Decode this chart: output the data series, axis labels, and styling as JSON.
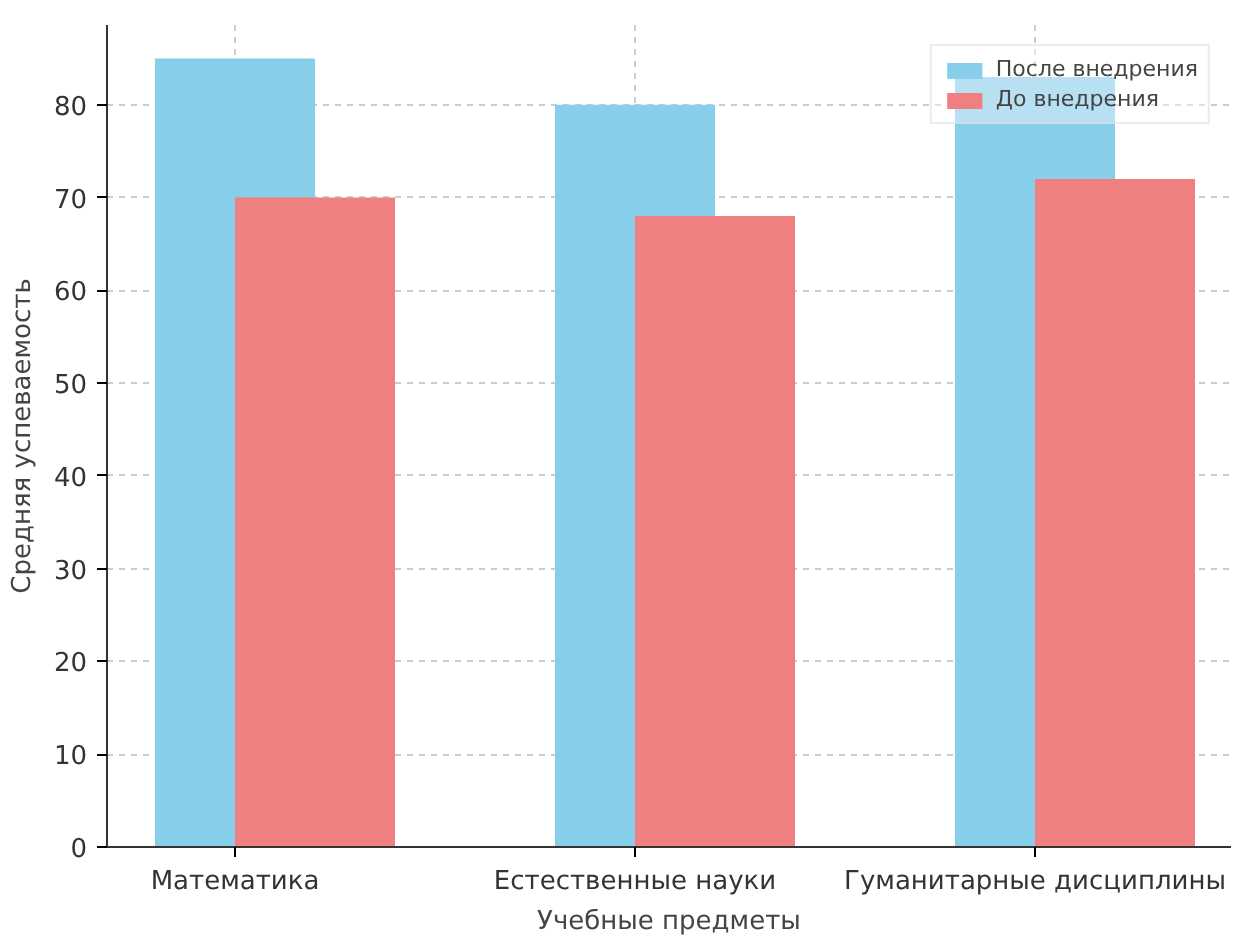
{
  "chart_data": {
    "type": "bar",
    "xlabel": "Учебные предметы",
    "ylabel": "Средняя успеваемость",
    "categories": [
      "Математика",
      "Естественные науки",
      "Гуманитарные дисциплины"
    ],
    "series": [
      {
        "name": "После внедрения",
        "color": "#87ceeb",
        "values": [
          85,
          80,
          83
        ]
      },
      {
        "name": "До внедрения",
        "color": "#f08080",
        "values": [
          70,
          68,
          72
        ]
      }
    ],
    "ylim": [
      0,
      88.6
    ],
    "yticks": [
      0,
      10,
      20,
      30,
      40,
      50,
      60,
      70,
      80
    ],
    "grid": true,
    "legend": "top right"
  }
}
